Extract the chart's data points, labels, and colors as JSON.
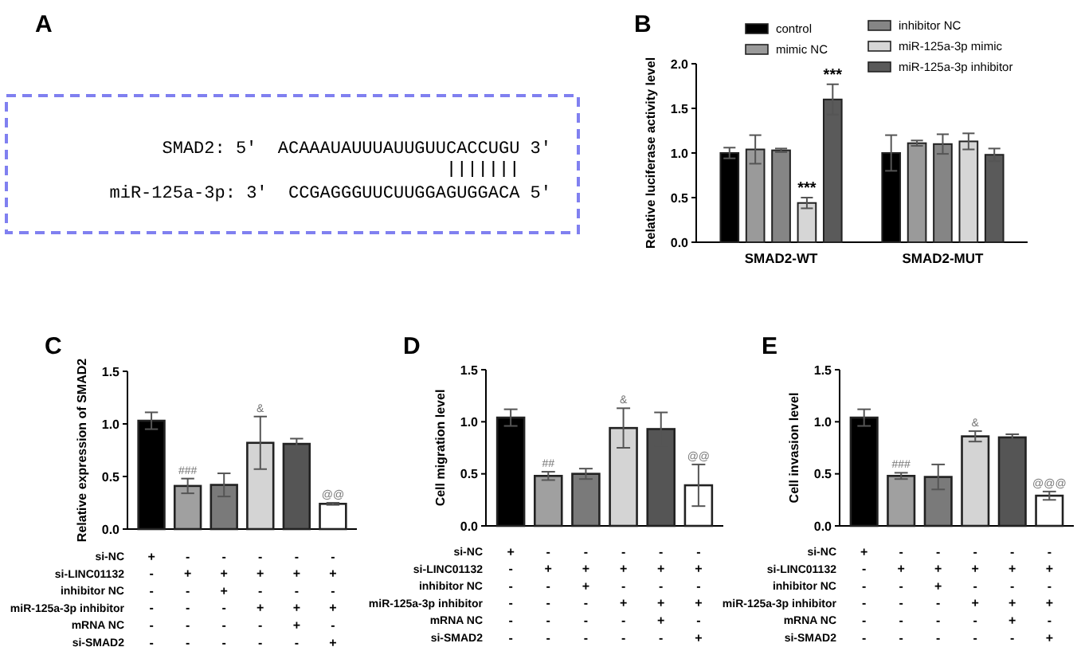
{
  "chart_data": [
    {
      "type": "other",
      "title": "A",
      "annotations": [
        "SMAD2: 5'  ACAAAUAUUUAUUGUUCACCUGU 3'",
        "miR-125a-3p: 3'  CCGAGGGUUCUUGGAGUGGACA 5'"
      ]
    },
    {
      "type": "bar",
      "title": "B",
      "ylabel": "Relative luciferase activity level",
      "categories": [
        "SMAD2-WT",
        "SMAD2-MUT"
      ],
      "ylim": [
        0,
        2
      ],
      "yticks": [
        {
          "value": 0,
          "label": "0.0"
        },
        {
          "value": 0.5,
          "label": "0.5"
        },
        {
          "value": 1,
          "label": "1.0"
        },
        {
          "value": 1.5,
          "label": "1.5"
        },
        {
          "value": 2,
          "label": "2.0"
        }
      ],
      "legend": "top",
      "grid": false,
      "series": [
        {
          "name": "control",
          "color": "#000000",
          "values": [
            1.0,
            1.0
          ],
          "errors": [
            0.06,
            0.2
          ]
        },
        {
          "name": "mimic NC",
          "color": "#9a9a9a",
          "values": [
            1.04,
            1.11
          ],
          "errors": [
            0.16,
            0.03
          ]
        },
        {
          "name": "inhibitor NC",
          "color": "#858585",
          "values": [
            1.03,
            1.1
          ],
          "errors": [
            0.02,
            0.11
          ]
        },
        {
          "name": "miR-125a-3p mimic",
          "color": "#d6d6d6",
          "values": [
            0.44,
            1.13
          ],
          "errors": [
            0.06,
            0.09
          ],
          "value_labels": [
            "***",
            null
          ]
        },
        {
          "name": "miR-125a-3p inhibitor",
          "color": "#5a5a5a",
          "values": [
            1.6,
            0.98
          ],
          "errors": [
            0.17,
            0.07
          ],
          "value_labels": [
            "***",
            null
          ]
        }
      ]
    },
    {
      "type": "bar",
      "title": "C",
      "ylabel": "Relative expression of SMAD2",
      "categories": [
        "+\n-\n-\n-\n-\n-",
        "-\n+\n-\n-\n-\n-",
        "-\n+\n+\n-\n-\n-",
        "-\n+\n-\n+\n-\n-",
        "-\n+\n-\n+\n+\n-",
        "-\n+\n-\n+\n-\n+"
      ],
      "annotations": [
        "si-NC",
        "si-LINC01132",
        "inhibitor NC",
        "miR-125a-3p inhibitor",
        "mRNA NC",
        "si-SMAD2"
      ],
      "ylim": [
        0,
        1.5
      ],
      "yticks": [
        {
          "value": 0,
          "label": "0.0"
        },
        {
          "value": 0.5,
          "label": "0.5"
        },
        {
          "value": 1,
          "label": "1.0"
        },
        {
          "value": 1.5,
          "label": "1.5"
        }
      ],
      "values": [
        1.03,
        0.41,
        0.42,
        0.82,
        0.81,
        0.24
      ],
      "errors": [
        0.08,
        0.07,
        0.11,
        0.25,
        0.05,
        0.01
      ],
      "colors": [
        "#000000",
        "#a0a0a0",
        "#7a7a7a",
        "#d4d4d4",
        "#555555",
        "#ffffff"
      ],
      "value_labels": [
        null,
        "###",
        null,
        "&",
        null,
        "@@"
      ]
    },
    {
      "type": "bar",
      "title": "D",
      "ylabel": "Cell migration level",
      "categories": [
        "+\n-\n-\n-\n-\n-",
        "-\n+\n-\n-\n-\n-",
        "-\n+\n+\n-\n-\n-",
        "-\n+\n-\n+\n-\n-",
        "-\n+\n-\n+\n+\n-",
        "-\n+\n-\n+\n-\n+"
      ],
      "annotations": [
        "si-NC",
        "si-LINC01132",
        "inhibitor NC",
        "miR-125a-3p inhibitor",
        "mRNA NC",
        "si-SMAD2"
      ],
      "ylim": [
        0,
        1.5
      ],
      "yticks": [
        {
          "value": 0,
          "label": "0.0"
        },
        {
          "value": 0.5,
          "label": "0.5"
        },
        {
          "value": 1,
          "label": "1.0"
        },
        {
          "value": 1.5,
          "label": "1.5"
        }
      ],
      "values": [
        1.04,
        0.48,
        0.5,
        0.94,
        0.93,
        0.39
      ],
      "errors": [
        0.08,
        0.04,
        0.05,
        0.19,
        0.16,
        0.2
      ],
      "colors": [
        "#000000",
        "#a0a0a0",
        "#7a7a7a",
        "#d4d4d4",
        "#555555",
        "#ffffff"
      ],
      "value_labels": [
        null,
        "##",
        null,
        "&",
        null,
        "@@"
      ]
    },
    {
      "type": "bar",
      "title": "E",
      "ylabel": "Cell invasion level",
      "categories": [
        "+\n-\n-\n-\n-\n-",
        "-\n+\n-\n-\n-\n-",
        "-\n+\n+\n-\n-\n-",
        "-\n+\n-\n+\n-\n-",
        "-\n+\n-\n+\n+\n-",
        "-\n+\n-\n+\n-\n+"
      ],
      "annotations": [
        "si-NC",
        "si-LINC01132",
        "inhibitor NC",
        "miR-125a-3p inhibitor",
        "mRNA NC",
        "si-SMAD2"
      ],
      "ylim": [
        0,
        1.5
      ],
      "yticks": [
        {
          "value": 0,
          "label": "0.0"
        },
        {
          "value": 0.5,
          "label": "0.5"
        },
        {
          "value": 1,
          "label": "1.0"
        },
        {
          "value": 1.5,
          "label": "1.5"
        }
      ],
      "values": [
        1.04,
        0.48,
        0.47,
        0.86,
        0.85,
        0.29
      ],
      "errors": [
        0.08,
        0.03,
        0.12,
        0.05,
        0.03,
        0.04
      ],
      "colors": [
        "#000000",
        "#a0a0a0",
        "#7a7a7a",
        "#d4d4d4",
        "#555555",
        "#ffffff"
      ],
      "value_labels": [
        null,
        "###",
        null,
        "&",
        null,
        "@@@"
      ]
    }
  ]
}
